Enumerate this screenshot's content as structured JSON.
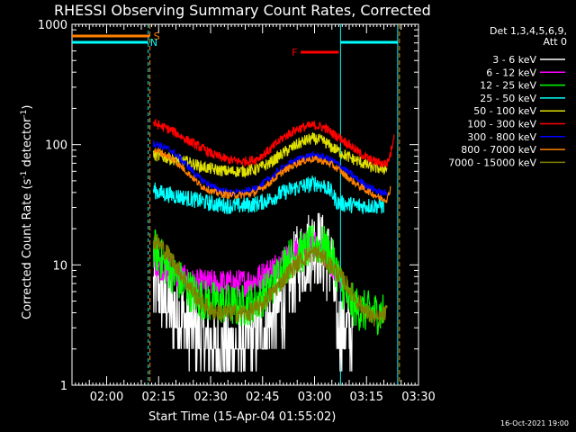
{
  "chart_data": {
    "type": "line",
    "title": "RHESSI Observing Summary Count Rates, Corrected",
    "xlabel": "Start Time (15-Apr-04 01:55:02)",
    "ylabel": "Corrected Count Rate (s",
    "ylabel_sup1": "-1",
    "ylabel_mid": " detector",
    "ylabel_sup2": "-1",
    "ylabel_end": ")",
    "yscale": "log",
    "ylim": [
      1,
      1000
    ],
    "xlim_min": [
      -5,
      95
    ],
    "y_tick_labels": [
      "1",
      "10",
      "100",
      "1000"
    ],
    "x_tick_labels": [
      "02:00",
      "02:15",
      "02:30",
      "02:45",
      "03:00",
      "03:15",
      "03:30"
    ],
    "x_tick_min": [
      5,
      20,
      35,
      50,
      65,
      80,
      95
    ],
    "footer_date": "16-Oct-2021 19:00",
    "legend_header": [
      "Det 1,3,4,5,6,9,",
      "Att 0"
    ],
    "series": [
      {
        "name": "3 - 6 keV",
        "color": "#ffffff",
        "values": [
          [
            18.5,
            6
          ],
          [
            20,
            6.5
          ],
          [
            22,
            5
          ],
          [
            25,
            4
          ],
          [
            27,
            3.5
          ],
          [
            29,
            3
          ],
          [
            31,
            2.8
          ],
          [
            33,
            2.4
          ],
          [
            36,
            2
          ],
          [
            40,
            2
          ],
          [
            44,
            2
          ],
          [
            47,
            2.4
          ],
          [
            50,
            3
          ],
          [
            54,
            4
          ],
          [
            57,
            6
          ],
          [
            60,
            10
          ],
          [
            63,
            13
          ],
          [
            65,
            15
          ],
          [
            66,
            14
          ],
          [
            70,
            10
          ],
          [
            71.5,
            3
          ],
          [
            74,
            3
          ],
          [
            76,
            2.5
          ]
        ]
      },
      {
        "name": "6 - 12 keV",
        "color": "#ff00ff",
        "values": [
          [
            18.5,
            11
          ],
          [
            20,
            10
          ],
          [
            23,
            9
          ],
          [
            26,
            8
          ],
          [
            30,
            7
          ],
          [
            34,
            7
          ],
          [
            38,
            7
          ],
          [
            43,
            7
          ],
          [
            48,
            7.5
          ],
          [
            52,
            9
          ],
          [
            56,
            11
          ],
          [
            60,
            13
          ],
          [
            63,
            15
          ],
          [
            65,
            15
          ],
          [
            68,
            13
          ],
          [
            70,
            10
          ],
          [
            71.5,
            8
          ],
          [
            72.5,
            7.5
          ]
        ]
      },
      {
        "name": "12 - 25 keV",
        "color": "#00ff00",
        "values": [
          [
            18.5,
            14
          ],
          [
            20,
            12
          ],
          [
            22,
            10
          ],
          [
            25,
            8
          ],
          [
            28,
            6.5
          ],
          [
            31,
            5.5
          ],
          [
            34,
            5
          ],
          [
            38,
            4.8
          ],
          [
            43,
            4.5
          ],
          [
            47,
            4.8
          ],
          [
            50,
            5.5
          ],
          [
            53,
            7
          ],
          [
            56,
            10
          ],
          [
            59,
            12
          ],
          [
            62,
            13
          ],
          [
            65,
            15
          ],
          [
            68,
            14
          ],
          [
            71,
            10
          ],
          [
            72.5,
            7
          ],
          [
            75,
            5
          ],
          [
            78,
            4.2
          ],
          [
            82,
            4
          ],
          [
            85,
            4
          ]
        ]
      },
      {
        "name": "25 - 50 keV",
        "color": "#00ffff",
        "values": [
          [
            18.5,
            42
          ],
          [
            20,
            40
          ],
          [
            24,
            38
          ],
          [
            28,
            36
          ],
          [
            32,
            34
          ],
          [
            36,
            32
          ],
          [
            40,
            31
          ],
          [
            44,
            31
          ],
          [
            48,
            32
          ],
          [
            52,
            35
          ],
          [
            56,
            40
          ],
          [
            60,
            44
          ],
          [
            63,
            46
          ],
          [
            65,
            48
          ],
          [
            68,
            45
          ],
          [
            70,
            40
          ],
          [
            71.5,
            33
          ],
          [
            74,
            32
          ],
          [
            78,
            31
          ],
          [
            81,
            31
          ],
          [
            85,
            31
          ]
        ]
      },
      {
        "name": "50 - 100 keV",
        "color": "#e0e000",
        "values": [
          [
            18.5,
            82
          ],
          [
            20,
            80
          ],
          [
            24,
            76
          ],
          [
            28,
            72
          ],
          [
            32,
            66
          ],
          [
            36,
            62
          ],
          [
            40,
            60
          ],
          [
            44,
            60
          ],
          [
            48,
            62
          ],
          [
            52,
            70
          ],
          [
            56,
            85
          ],
          [
            60,
            100
          ],
          [
            63,
            110
          ],
          [
            65,
            112
          ],
          [
            68,
            105
          ],
          [
            70,
            95
          ],
          [
            72,
            88
          ],
          [
            75,
            78
          ],
          [
            78,
            72
          ],
          [
            81,
            66
          ],
          [
            84,
            63
          ],
          [
            86,
            64
          ]
        ]
      },
      {
        "name": "100 - 300 keV",
        "color": "#ff0000",
        "values": [
          [
            18.5,
            150
          ],
          [
            20,
            145
          ],
          [
            24,
            130
          ],
          [
            28,
            110
          ],
          [
            32,
            95
          ],
          [
            36,
            82
          ],
          [
            40,
            75
          ],
          [
            44,
            72
          ],
          [
            48,
            75
          ],
          [
            52,
            90
          ],
          [
            56,
            115
          ],
          [
            60,
            135
          ],
          [
            63,
            142
          ],
          [
            65,
            145
          ],
          [
            68,
            138
          ],
          [
            70,
            125
          ],
          [
            72,
            115
          ],
          [
            75,
            100
          ],
          [
            78,
            85
          ],
          [
            81,
            75
          ],
          [
            84,
            70
          ],
          [
            86,
            70
          ],
          [
            87,
            85
          ],
          [
            88,
            125
          ]
        ]
      },
      {
        "name": "300 - 800 keV",
        "color": "#0000ff",
        "values": [
          [
            18.5,
            102
          ],
          [
            20,
            100
          ],
          [
            24,
            88
          ],
          [
            28,
            68
          ],
          [
            32,
            52
          ],
          [
            36,
            44
          ],
          [
            40,
            40
          ],
          [
            44,
            40
          ],
          [
            48,
            43
          ],
          [
            52,
            52
          ],
          [
            56,
            65
          ],
          [
            60,
            75
          ],
          [
            63,
            80
          ],
          [
            65,
            82
          ],
          [
            68,
            78
          ],
          [
            70,
            74
          ],
          [
            72,
            68
          ],
          [
            75,
            58
          ],
          [
            78,
            50
          ],
          [
            81,
            44
          ],
          [
            84,
            40
          ],
          [
            86,
            39
          ]
        ]
      },
      {
        "name": "800 - 7000 keV",
        "color": "#ff8000",
        "values": [
          [
            18.5,
            90
          ],
          [
            20,
            88
          ],
          [
            24,
            76
          ],
          [
            28,
            60
          ],
          [
            32,
            46
          ],
          [
            36,
            40
          ],
          [
            40,
            38
          ],
          [
            44,
            38
          ],
          [
            48,
            40
          ],
          [
            52,
            48
          ],
          [
            56,
            60
          ],
          [
            60,
            70
          ],
          [
            63,
            75
          ],
          [
            65,
            76
          ],
          [
            68,
            72
          ],
          [
            70,
            68
          ],
          [
            72,
            62
          ],
          [
            75,
            52
          ],
          [
            78,
            45
          ],
          [
            81,
            40
          ],
          [
            84,
            36
          ],
          [
            86,
            35
          ],
          [
            87,
            45
          ]
        ]
      },
      {
        "name": "7000 - 15000 keV",
        "color": "#808000",
        "values": [
          [
            18.5,
            16
          ],
          [
            20,
            15
          ],
          [
            23,
            12
          ],
          [
            26,
            9
          ],
          [
            29,
            6.5
          ],
          [
            32,
            5
          ],
          [
            35,
            4.2
          ],
          [
            38,
            4
          ],
          [
            42,
            4
          ],
          [
            46,
            4
          ],
          [
            49,
            4.5
          ],
          [
            52,
            5.5
          ],
          [
            55,
            7
          ],
          [
            58,
            9
          ],
          [
            61,
            11
          ],
          [
            64,
            12.5
          ],
          [
            66,
            12.5
          ],
          [
            68,
            11
          ],
          [
            71,
            9
          ],
          [
            74,
            7
          ],
          [
            77,
            5.2
          ],
          [
            80,
            4
          ],
          [
            83,
            3.5
          ],
          [
            86,
            4
          ]
        ]
      }
    ],
    "annotations": [
      {
        "text": "S",
        "color": "#ff8000"
      },
      {
        "text": "N",
        "color": "#00ffff"
      },
      {
        "text": "F",
        "color": "#ff0000"
      }
    ],
    "intervals": {
      "saa": {
        "label": "S",
        "color": "#ff8000",
        "x": [
          -5,
          17.5
        ],
        "x_end_marker": 89.5
      },
      "night": {
        "label": "N",
        "color": "#00ffff",
        "x": [
          -5,
          17
        ],
        "x2": [
          72.5,
          89
        ]
      },
      "flare": {
        "label": "F",
        "color": "#ff0000",
        "x": [
          61,
          72
        ]
      }
    }
  }
}
